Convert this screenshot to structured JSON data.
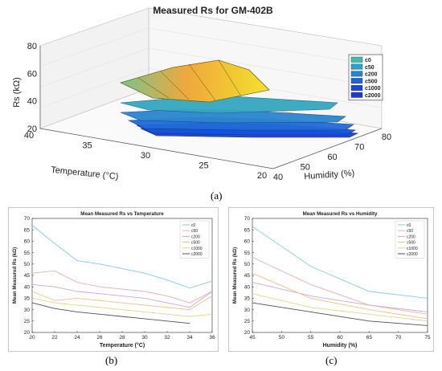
{
  "chart_data": [
    {
      "type": "surface3d",
      "title": "Measured Rs for GM-402B",
      "xlabel": "Humidity (%)",
      "ylabel": "Temperature (°C)",
      "zlabel": "Rs (kΩ)",
      "x_ticks": [
        "40",
        "50",
        "60",
        "70",
        "80"
      ],
      "y_ticks": [
        "20",
        "25",
        "30",
        "35",
        "40"
      ],
      "z_ticks": [
        "20",
        "40",
        "60",
        "80"
      ],
      "legend": [
        "c0",
        "c50",
        "c200",
        "c500",
        "c1000",
        "c2000"
      ],
      "legend_colors": [
        "#3bbfa8",
        "#23a6c9",
        "#1e86d4",
        "#1a66dc",
        "#1448e0",
        "#1e3ad0"
      ],
      "legend_position": "right",
      "caption": "(a)"
    },
    {
      "type": "line",
      "title": "Mean Measured Rs vs Temperature",
      "xlabel": "Temperature (°C)",
      "ylabel": "Mean Measured Rs (kΩ)",
      "xlim": [
        20,
        36
      ],
      "ylim": [
        20,
        70
      ],
      "x_ticks": [
        "20",
        "22",
        "24",
        "26",
        "28",
        "30",
        "32",
        "34",
        "36"
      ],
      "y_ticks": [
        "20",
        "25",
        "30",
        "35",
        "40",
        "45",
        "50",
        "55",
        "60",
        "65",
        "70"
      ],
      "x": [
        20,
        22,
        24,
        26,
        28,
        30,
        32,
        34,
        36
      ],
      "series": [
        {
          "name": "c0",
          "color": "#8cc7ea",
          "values": [
            67,
            59,
            51.5,
            50,
            48,
            46,
            43,
            39.5,
            42.5
          ]
        },
        {
          "name": "c50",
          "color": "#e8b0b0",
          "values": [
            46,
            47,
            42,
            40,
            39,
            38,
            36,
            33,
            38
          ]
        },
        {
          "name": "c200",
          "color": "#c8a8d8",
          "values": [
            41,
            40,
            38,
            37,
            36,
            35,
            33,
            31,
            38
          ]
        },
        {
          "name": "c500",
          "color": "#f0c090",
          "values": [
            38,
            34,
            35,
            34,
            33,
            32,
            31,
            30,
            36
          ]
        },
        {
          "name": "c1000",
          "color": "#d8d890",
          "values": [
            35,
            33,
            32,
            31,
            30,
            29,
            28,
            27,
            28
          ]
        },
        {
          "name": "c2000",
          "color": "#505050",
          "values": [
            33,
            30.5,
            29,
            28,
            27,
            26,
            25,
            24,
            null
          ]
        }
      ],
      "legend_position": "top-right",
      "grid": false,
      "caption": "(b)"
    },
    {
      "type": "line",
      "title": "Mean Measured Rs vs Humidity",
      "xlabel": "Humidity (%)",
      "ylabel": "Mean Measured Rs (kΩ)",
      "xlim": [
        45,
        75
      ],
      "ylim": [
        20,
        70
      ],
      "x_ticks": [
        "45",
        "50",
        "55",
        "60",
        "65",
        "70",
        "75"
      ],
      "y_ticks": [
        "20",
        "25",
        "30",
        "35",
        "40",
        "45",
        "50",
        "55",
        "60",
        "65",
        "70"
      ],
      "x": [
        45,
        55,
        65,
        75
      ],
      "series": [
        {
          "name": "c0",
          "color": "#8cc7ea",
          "values": [
            66.5,
            49,
            38,
            35
          ]
        },
        {
          "name": "c50",
          "color": "#e8b0b0",
          "values": [
            53,
            41,
            32,
            28
          ]
        },
        {
          "name": "c200",
          "color": "#c8a8d8",
          "values": [
            42,
            36,
            32,
            29
          ]
        },
        {
          "name": "c500",
          "color": "#f0c090",
          "values": [
            46,
            35,
            30,
            26
          ]
        },
        {
          "name": "c1000",
          "color": "#d8d890",
          "values": [
            37,
            31,
            28,
            25
          ]
        },
        {
          "name": "c2000",
          "color": "#505050",
          "values": [
            33,
            29,
            25,
            23
          ]
        }
      ],
      "legend_position": "top-right",
      "grid": false,
      "caption": "(c)"
    }
  ]
}
